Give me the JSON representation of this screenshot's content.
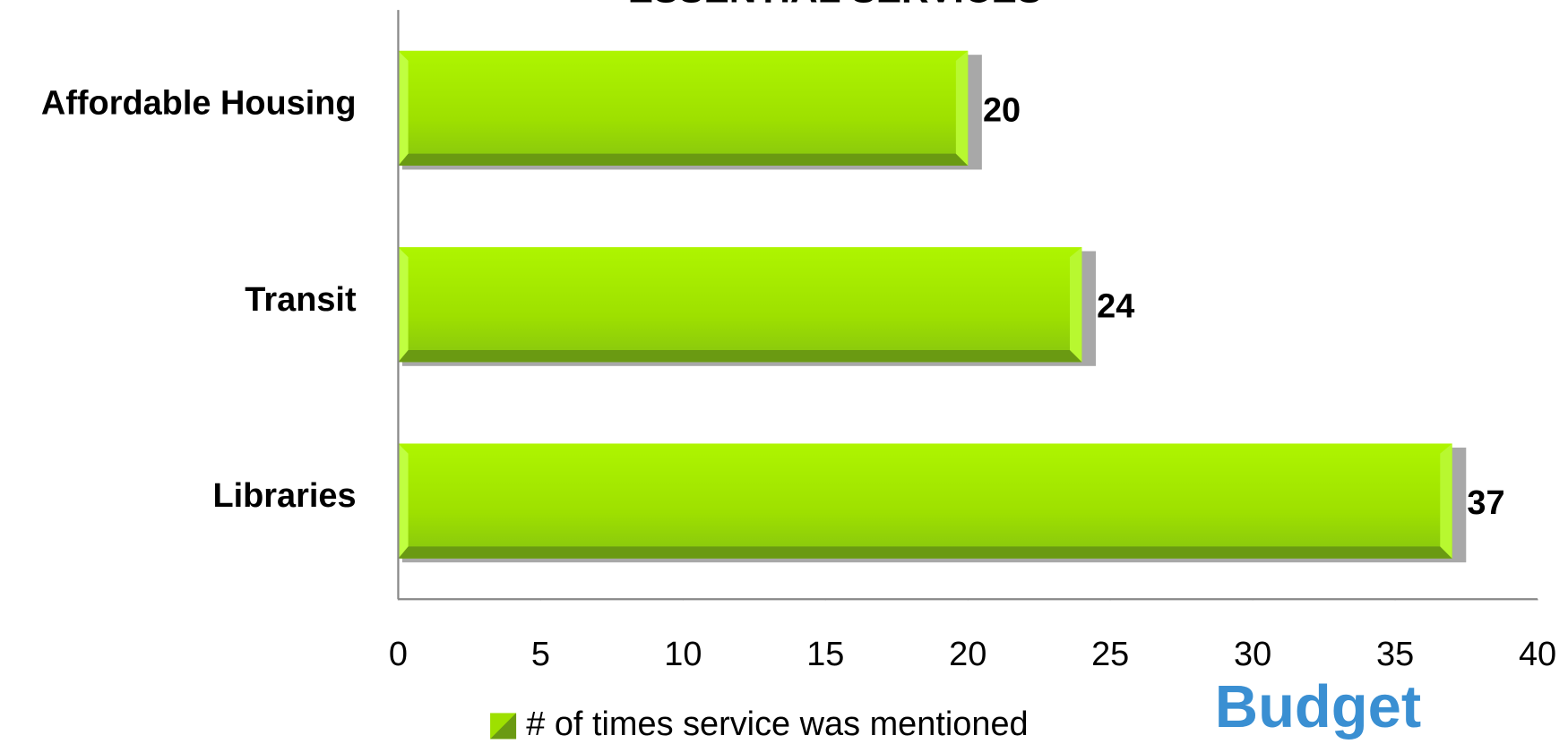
{
  "chart_data": {
    "type": "bar",
    "orientation": "horizontal",
    "title": "ESSENTIAL SERVICES",
    "categories": [
      "Affordable Housing",
      "Transit",
      "Libraries"
    ],
    "series": [
      {
        "name": "# of times service was mentioned",
        "color": "#9ee000",
        "values": [
          20,
          24,
          37
        ]
      }
    ],
    "xlim": [
      0,
      40
    ],
    "xticks": [
      0,
      5,
      10,
      15,
      20,
      25,
      30,
      35,
      40
    ],
    "grid": false,
    "legend": "bottom",
    "annotation": "Budget"
  }
}
